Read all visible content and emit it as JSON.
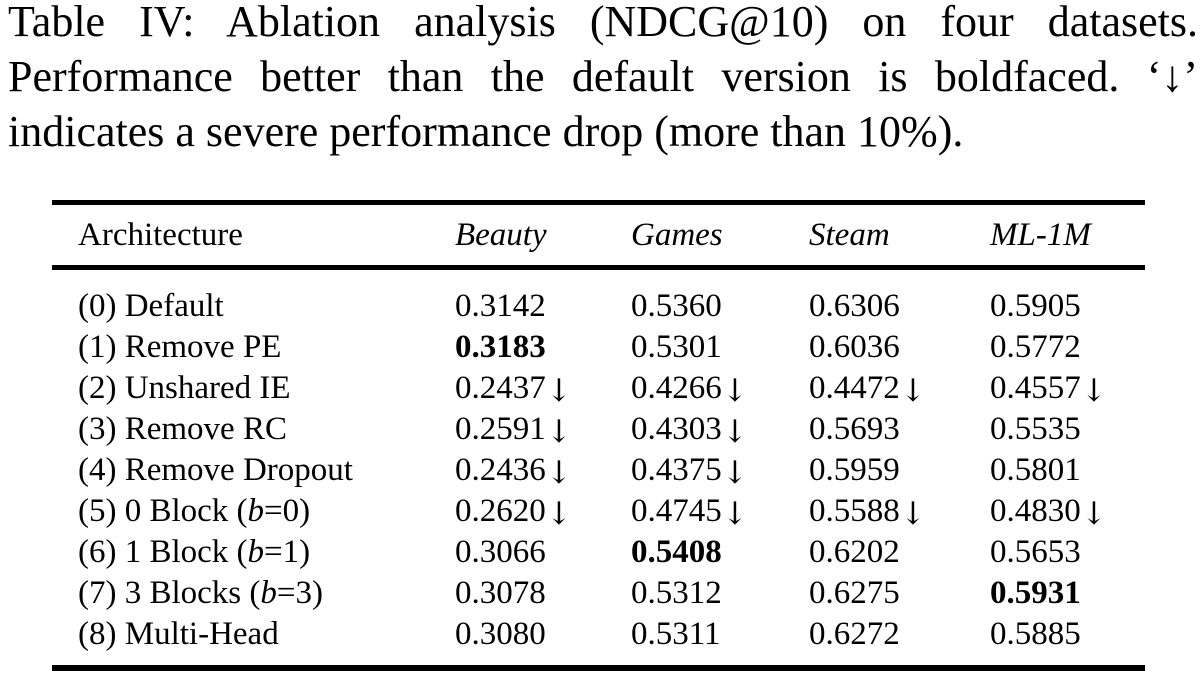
{
  "caption": {
    "lines": [
      "Table IV: Ablation analysis (NDCG@10) on four datasets.",
      "Performance better than the default version is boldfaced. ‘↓’",
      "indicates a severe performance drop (more than 10%)."
    ]
  },
  "table": {
    "drop_symbol": "↓",
    "columns": [
      {
        "label": "Architecture"
      },
      {
        "label": "Beauty"
      },
      {
        "label": "Games"
      },
      {
        "label": "Steam"
      },
      {
        "label": "ML-1M"
      }
    ],
    "rows": [
      {
        "label_parts": [
          "(0) Default"
        ],
        "cells": [
          {
            "v": "0.3142"
          },
          {
            "v": "0.5360"
          },
          {
            "v": "0.6306"
          },
          {
            "v": "0.5905"
          }
        ]
      },
      {
        "label_parts": [
          "(1) Remove PE"
        ],
        "cells": [
          {
            "v": "0.3183",
            "bold": true
          },
          {
            "v": "0.5301"
          },
          {
            "v": "0.6036"
          },
          {
            "v": "0.5772"
          }
        ]
      },
      {
        "label_parts": [
          "(2) Unshared IE"
        ],
        "cells": [
          {
            "v": "0.2437",
            "drop": true
          },
          {
            "v": "0.4266",
            "drop": true
          },
          {
            "v": "0.4472",
            "drop": true
          },
          {
            "v": "0.4557",
            "drop": true
          }
        ]
      },
      {
        "label_parts": [
          "(3) Remove RC"
        ],
        "cells": [
          {
            "v": "0.2591",
            "drop": true
          },
          {
            "v": "0.4303",
            "drop": true
          },
          {
            "v": "0.5693"
          },
          {
            "v": "0.5535"
          }
        ]
      },
      {
        "label_parts": [
          "(4) Remove Dropout"
        ],
        "cells": [
          {
            "v": "0.2436",
            "drop": true
          },
          {
            "v": "0.4375",
            "drop": true
          },
          {
            "v": "0.5959"
          },
          {
            "v": "0.5801"
          }
        ]
      },
      {
        "label_parts": [
          "(5) 0 Block (",
          {
            "i": "b"
          },
          "=0)"
        ],
        "cells": [
          {
            "v": "0.2620",
            "drop": true
          },
          {
            "v": "0.4745",
            "drop": true
          },
          {
            "v": "0.5588",
            "drop": true
          },
          {
            "v": "0.4830",
            "drop": true
          }
        ]
      },
      {
        "label_parts": [
          "(6) 1 Block (",
          {
            "i": "b"
          },
          "=1)"
        ],
        "cells": [
          {
            "v": "0.3066"
          },
          {
            "v": "0.5408",
            "bold": true
          },
          {
            "v": "0.6202"
          },
          {
            "v": "0.5653"
          }
        ]
      },
      {
        "label_parts": [
          "(7) 3 Blocks (",
          {
            "i": "b"
          },
          "=3)"
        ],
        "cells": [
          {
            "v": "0.3078"
          },
          {
            "v": "0.5312"
          },
          {
            "v": "0.6275"
          },
          {
            "v": "0.5931",
            "bold": true
          }
        ]
      },
      {
        "label_parts": [
          "(8) Multi-Head"
        ],
        "cells": [
          {
            "v": "0.3080"
          },
          {
            "v": "0.5311"
          },
          {
            "v": "0.6272"
          },
          {
            "v": "0.5885"
          }
        ]
      }
    ]
  }
}
